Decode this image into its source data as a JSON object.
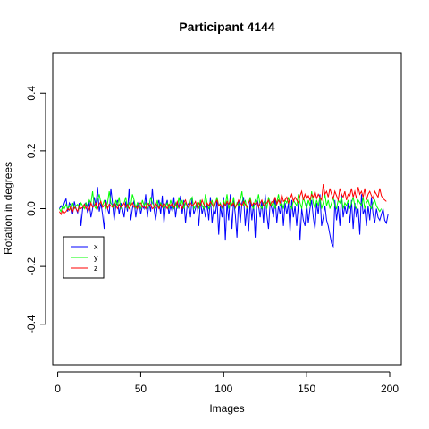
{
  "chart_data": {
    "type": "line",
    "title": "Participant 4144",
    "xlabel": "Images",
    "ylabel": "Rotation in degrees",
    "xlim": [
      -3,
      207
    ],
    "ylim": [
      -0.54,
      0.54
    ],
    "xticks": [
      0,
      50,
      100,
      150,
      200
    ],
    "xtick_labels": [
      "0",
      "50",
      "100",
      "150",
      "200"
    ],
    "yticks": [
      -0.4,
      -0.2,
      0.0,
      0.2,
      0.4
    ],
    "ytick_labels": [
      "-0.4",
      "-0.2",
      "0.0",
      "0.2",
      "0.4"
    ],
    "grid": false,
    "legend_position": "left",
    "series": [
      {
        "name": "x",
        "color": "#0000ff",
        "x_start": 1,
        "x_step": 1,
        "values": [
          0.0,
          0.01,
          0.0,
          0.02,
          0.035,
          -0.01,
          0.02,
          0.01,
          -0.02,
          0.025,
          0.0,
          -0.015,
          0.02,
          -0.06,
          0.0,
          0.015,
          0.02,
          -0.015,
          0.025,
          -0.03,
          0.0,
          0.04,
          0.01,
          0.075,
          -0.01,
          0.02,
          -0.02,
          -0.07,
          0.03,
          0.0,
          -0.02,
          0.07,
          0.02,
          -0.04,
          0.01,
          0.03,
          -0.02,
          0.02,
          0.0,
          -0.03,
          0.025,
          -0.01,
          0.07,
          -0.04,
          0.0,
          0.03,
          -0.03,
          0.01,
          0.025,
          -0.02,
          0.01,
          0.0,
          0.05,
          -0.03,
          0.02,
          -0.01,
          0.07,
          0.0,
          -0.04,
          0.01,
          0.03,
          -0.02,
          0.045,
          -0.05,
          0.01,
          0.03,
          -0.02,
          0.01,
          -0.01,
          0.04,
          -0.03,
          0.02,
          0.0,
          0.045,
          -0.02,
          0.03,
          -0.05,
          0.01,
          0.02,
          -0.03,
          0.04,
          -0.02,
          0.0,
          0.02,
          -0.06,
          0.03,
          -0.02,
          0.01,
          -0.03,
          0.02,
          -0.04,
          0.04,
          -0.05,
          0.0,
          -0.02,
          0.03,
          -0.09,
          0.01,
          -0.03,
          0.04,
          -0.11,
          0.02,
          -0.04,
          0.05,
          -0.07,
          0.03,
          -0.02,
          -0.1,
          0.03,
          -0.05,
          0.02,
          0.04,
          -0.06,
          0.01,
          -0.08,
          0.03,
          -0.04,
          0.02,
          -0.1,
          0.04,
          0.01,
          -0.03,
          0.03,
          -0.05,
          0.05,
          -0.02,
          -0.07,
          0.02,
          0.0,
          -0.03,
          0.04,
          -0.05,
          0.01,
          -0.02,
          0.03,
          -0.06,
          0.02,
          -0.02,
          0.02,
          -0.08,
          0.03,
          -0.03,
          0.01,
          -0.06,
          0.02,
          -0.11,
          0.0,
          -0.04,
          -0.06,
          0.02,
          -0.05,
          0.0,
          0.03,
          -0.03,
          -0.07,
          0.02,
          -0.02,
          0.05,
          -0.06,
          -0.03,
          0.01,
          -0.04,
          -0.06,
          -0.09,
          -0.12,
          -0.13,
          0.03,
          -0.04,
          0.01,
          -0.06,
          0.05,
          -0.03,
          0.01,
          -0.02,
          0.02,
          -0.05,
          0.03,
          -0.07,
          0.02,
          -0.03,
          0.0,
          -0.09,
          0.05,
          -0.02,
          0.0,
          -0.06,
          0.01,
          -0.04,
          0.04,
          -0.02,
          -0.05,
          0.0,
          -0.03,
          -0.04,
          -0.02,
          0.0,
          -0.04,
          -0.05,
          -0.02
        ]
      },
      {
        "name": "y",
        "color": "#00ff00",
        "x_start": 1,
        "x_step": 1,
        "values": [
          0.0,
          -0.01,
          0.01,
          0.0,
          0.015,
          0.0,
          0.01,
          -0.005,
          0.02,
          0.0,
          0.01,
          0.015,
          0.0,
          0.02,
          0.01,
          0.0,
          0.02,
          0.01,
          0.03,
          0.02,
          0.06,
          0.01,
          0.0,
          0.03,
          0.05,
          0.02,
          0.01,
          0.03,
          0.0,
          0.02,
          0.06,
          0.02,
          0.01,
          0.0,
          0.03,
          0.01,
          0.04,
          0.0,
          0.01,
          0.02,
          0.04,
          0.0,
          0.02,
          0.01,
          0.05,
          0.03,
          0.0,
          0.02,
          0.01,
          0.0,
          0.03,
          0.01,
          0.02,
          0.0,
          0.01,
          0.04,
          0.02,
          0.01,
          0.0,
          0.03,
          0.0,
          0.02,
          0.01,
          0.0,
          0.01,
          0.02,
          0.0,
          0.03,
          0.01,
          0.0,
          0.02,
          0.0,
          0.04,
          0.01,
          0.03,
          0.0,
          0.02,
          0.01,
          0.0,
          0.03,
          0.04,
          0.0,
          0.01,
          0.02,
          0.0,
          0.03,
          0.01,
          0.0,
          0.05,
          0.02,
          0.0,
          0.01,
          0.03,
          0.0,
          0.02,
          0.04,
          0.01,
          0.02,
          0.0,
          0.03,
          0.01,
          0.05,
          0.0,
          0.02,
          0.01,
          0.04,
          0.0,
          0.02,
          0.01,
          0.03,
          0.06,
          0.01,
          0.03,
          0.0,
          0.02,
          0.04,
          0.01,
          0.0,
          0.03,
          0.02,
          0.05,
          0.01,
          0.0,
          0.02,
          0.03,
          0.0,
          0.04,
          0.02,
          0.01,
          0.03,
          0.0,
          0.02,
          0.05,
          0.01,
          0.02,
          0.0,
          0.03,
          0.02,
          0.04,
          0.01,
          0.0,
          0.03,
          0.02,
          0.01,
          0.05,
          0.02,
          0.0,
          0.04,
          0.02,
          0.0,
          0.03,
          0.01,
          0.06,
          0.02,
          0.0,
          0.03,
          0.01,
          0.04,
          0.0,
          0.02,
          0.05,
          0.01,
          0.03,
          0.0,
          0.02,
          0.04,
          0.01,
          0.0,
          0.03,
          0.02,
          0.04,
          0.0,
          0.02,
          0.01,
          0.03,
          0.0,
          0.02,
          0.04,
          0.01,
          0.0,
          0.03,
          0.02,
          0.01,
          0.04,
          0.0,
          0.02,
          0.03,
          0.01,
          0.0,
          0.02,
          0.03,
          0.01,
          0.0,
          -0.01,
          0.0
        ]
      },
      {
        "name": "z",
        "color": "#ff0000",
        "x_start": 1,
        "x_step": 1,
        "values": [
          -0.01,
          -0.02,
          -0.005,
          -0.015,
          -0.01,
          0.0,
          -0.005,
          0.01,
          -0.01,
          0.005,
          0.0,
          -0.01,
          0.01,
          0.0,
          0.005,
          0.015,
          0.0,
          0.01,
          -0.005,
          0.02,
          0.005,
          0.01,
          0.02,
          0.0,
          0.015,
          0.025,
          0.005,
          0.01,
          0.02,
          0.0,
          0.015,
          0.01,
          0.005,
          0.02,
          0.01,
          0.0,
          0.015,
          0.005,
          0.01,
          0.02,
          0.005,
          0.015,
          0.0,
          0.01,
          0.02,
          0.005,
          0.01,
          0.0,
          0.015,
          0.02,
          0.005,
          0.01,
          0.0,
          0.02,
          0.01,
          0.015,
          0.0,
          0.005,
          0.02,
          0.01,
          0.0,
          0.015,
          0.005,
          0.02,
          0.01,
          0.0,
          0.015,
          0.01,
          0.02,
          0.005,
          0.01,
          0.025,
          0.005,
          0.015,
          0.0,
          0.02,
          0.03,
          0.01,
          0.005,
          0.02,
          0.01,
          0.015,
          0.025,
          0.005,
          0.02,
          0.01,
          0.03,
          0.015,
          0.005,
          0.02,
          0.01,
          0.025,
          0.015,
          0.005,
          0.02,
          0.03,
          0.01,
          0.015,
          0.005,
          0.02,
          0.01,
          0.025,
          0.015,
          0.03,
          0.01,
          0.02,
          0.005,
          0.015,
          0.03,
          0.02,
          0.01,
          0.025,
          0.015,
          0.005,
          0.02,
          0.03,
          0.01,
          0.02,
          0.015,
          0.025,
          0.005,
          0.02,
          0.03,
          0.01,
          0.015,
          0.02,
          0.03,
          0.01,
          0.025,
          0.02,
          0.04,
          0.015,
          0.03,
          0.02,
          0.05,
          0.025,
          0.03,
          0.04,
          0.02,
          0.035,
          0.05,
          0.025,
          0.04,
          0.03,
          0.02,
          0.045,
          0.06,
          0.03,
          0.05,
          0.035,
          0.045,
          0.03,
          0.05,
          0.04,
          0.06,
          0.035,
          0.05,
          0.04,
          0.03,
          0.085,
          0.05,
          0.06,
          0.04,
          0.07,
          0.05,
          0.035,
          0.06,
          0.045,
          0.03,
          0.07,
          0.05,
          0.04,
          0.06,
          0.03,
          0.05,
          0.045,
          0.07,
          0.04,
          0.06,
          0.035,
          0.075,
          0.05,
          0.06,
          0.04,
          0.07,
          0.03,
          0.05,
          0.06,
          0.045,
          0.035,
          0.06,
          0.05,
          0.04,
          0.07,
          0.045,
          0.035,
          0.03,
          0.025
        ]
      }
    ]
  }
}
